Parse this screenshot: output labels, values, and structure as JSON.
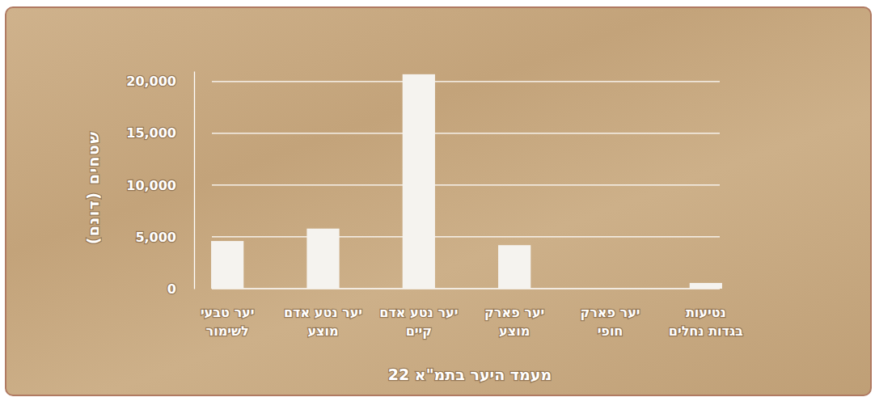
{
  "chart_data": {
    "type": "bar",
    "x_label": "מעמד היער בתמ\"א 22",
    "y_label": "שטחים (דונם)",
    "categories": [
      "יער טבעי\nלשימור",
      "יער נטע אדם\nמוצע",
      "יער נטע אדם\nקיים",
      "יער פארק\nמוצע",
      "יער פארק\nחופי",
      "נטיעות\nבגדות נחלים"
    ],
    "values": [
      4600,
      5800,
      20700,
      4200,
      0,
      550
    ],
    "color": "#f5f3ef",
    "ylim": [
      0,
      21000
    ],
    "yticks": [
      0,
      {
        "value": 5000,
        "label": "5,000"
      },
      {
        "value": 10000,
        "label": "10,000"
      },
      {
        "value": 15000,
        "label": "15,000"
      },
      {
        "value": 20000,
        "label": "20,000"
      }
    ],
    "grid": true
  }
}
